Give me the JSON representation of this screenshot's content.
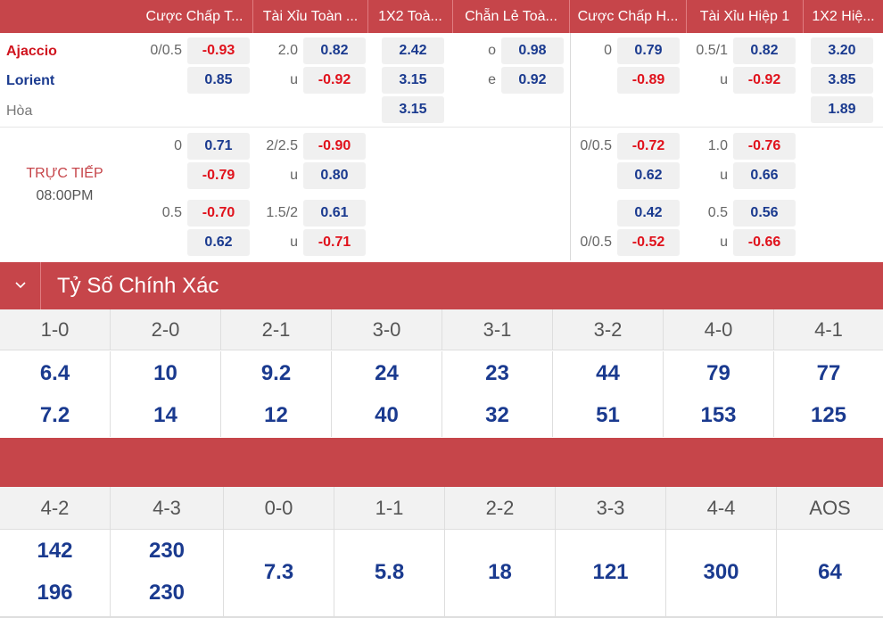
{
  "header": {
    "columns": [
      {
        "label": "Cược Chấp T..."
      },
      {
        "label": "Tài Xỉu Toàn ..."
      },
      {
        "label": "1X2 Toà..."
      },
      {
        "label": "Chẵn Lẻ Toà..."
      },
      {
        "label": "Cược Chấp H..."
      },
      {
        "label": "Tài Xỉu Hiệp 1"
      },
      {
        "label": "1X2 Hiệ..."
      }
    ]
  },
  "match": {
    "home": "Ajaccio",
    "away": "Lorient",
    "draw": "Hòa",
    "status": "TRỰC TIẾP",
    "time": "08:00PM"
  },
  "odds": {
    "main": {
      "hcp_line": "0/0.5",
      "hcp_home": "-0.93",
      "hcp_away": "0.85",
      "ou_line": "2.0",
      "ou_over": "0.82",
      "ou_u": "u",
      "ou_under": "-0.92",
      "x12_home": "2.42",
      "x12_away": "3.15",
      "x12_draw": "3.15",
      "oe_o": "o",
      "oe_odd": "0.98",
      "oe_e": "e",
      "oe_even": "0.92",
      "h1_hcp_line": "0",
      "h1_hcp_home": "0.79",
      "h1_hcp_away": "-0.89",
      "h1_ou_line": "0.5/1",
      "h1_ou_over": "0.82",
      "h1_ou_u": "u",
      "h1_ou_under": "-0.92",
      "h1_x12_home": "3.20",
      "h1_x12_away": "3.85",
      "h1_x12_draw": "1.89"
    },
    "alt1": {
      "hcp_line": "0",
      "hcp_home": "0.71",
      "hcp_away": "-0.79",
      "ou_line": "2/2.5",
      "ou_over": "-0.90",
      "ou_u": "u",
      "ou_under": "0.80",
      "h1_hcp_line": "0/0.5",
      "h1_hcp_home": "-0.72",
      "h1_hcp_away": "0.62",
      "h1_ou_line": "1.0",
      "h1_ou_over": "-0.76",
      "h1_ou_u": "u",
      "h1_ou_under": "0.66"
    },
    "alt2": {
      "hcp_line": "0.5",
      "hcp_home": "-0.70",
      "hcp_away": "0.62",
      "ou_line": "1.5/2",
      "ou_over": "0.61",
      "ou_u": "u",
      "ou_under": "-0.71",
      "h1_hcp_line_away": "0/0.5",
      "h1_hcp_home": "0.42",
      "h1_hcp_away": "-0.52",
      "h1_ou_line": "0.5",
      "h1_ou_over": "0.56",
      "h1_ou_u": "u",
      "h1_ou_under": "-0.66"
    }
  },
  "correct_score": {
    "title": "Tỷ Số Chính Xác",
    "row1": {
      "scores": [
        "1-0",
        "2-0",
        "2-1",
        "3-0",
        "3-1",
        "3-2",
        "4-0",
        "4-1"
      ],
      "home": [
        "6.4",
        "10",
        "9.2",
        "24",
        "23",
        "44",
        "79",
        "77"
      ],
      "away": [
        "7.2",
        "14",
        "12",
        "40",
        "32",
        "51",
        "153",
        "125"
      ]
    },
    "row2": {
      "scores": [
        "4-2",
        "4-3",
        "0-0",
        "1-1",
        "2-2",
        "3-3",
        "4-4",
        "AOS"
      ],
      "home": [
        "142",
        "230"
      ],
      "away": [
        "196",
        "230"
      ],
      "single": [
        "7.3",
        "5.8",
        "18",
        "121",
        "300",
        "64"
      ]
    }
  },
  "colors": {
    "header_bg": "#c6454a",
    "positive": "#1a3a8f",
    "negative": "#e0121c",
    "home_team": "#d0141e",
    "away_team": "#1a3a8f"
  },
  "icons": {
    "toggle": "chevron-down-icon"
  }
}
